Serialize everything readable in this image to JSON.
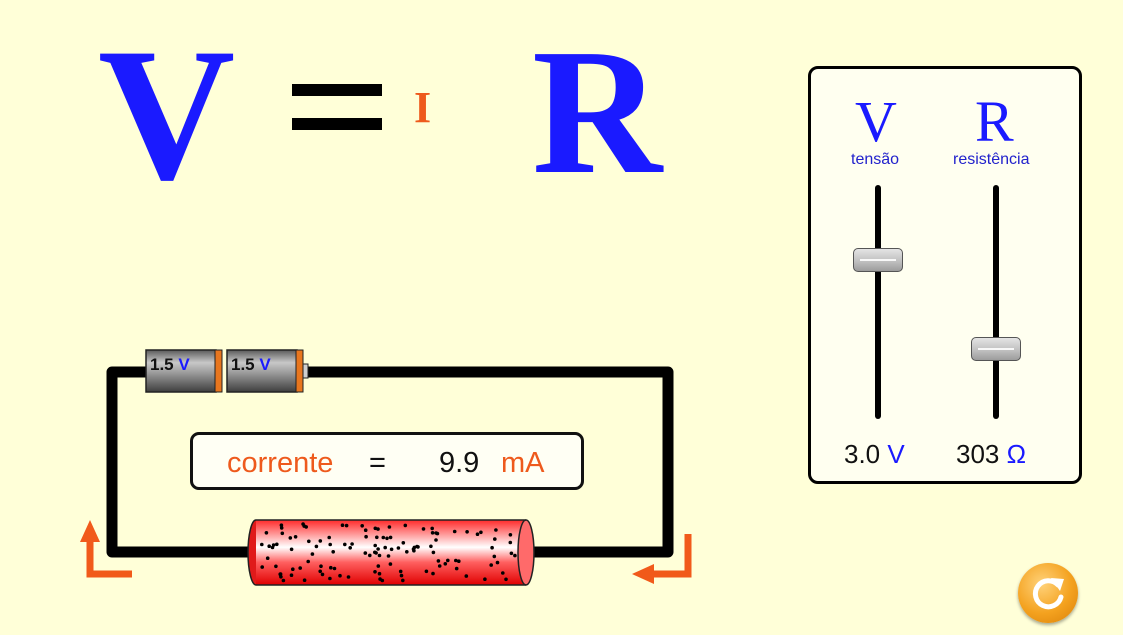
{
  "equation": {
    "v": "V",
    "equals": "=",
    "i": "I",
    "r": "R"
  },
  "panel": {
    "voltage": {
      "letter": "V",
      "caption": "tensão",
      "value": "3.0",
      "unit": "V",
      "slider_fraction": 0.68
    },
    "resistance": {
      "letter": "R",
      "caption": "resistência",
      "value": "303",
      "unit": "Ω",
      "slider_fraction": 0.3
    }
  },
  "batteries": [
    {
      "value": "1.5",
      "unit": "V"
    },
    {
      "value": "1.5",
      "unit": "V"
    }
  ],
  "current": {
    "label": "corrente",
    "equals": "=",
    "value": "9.9",
    "unit": "mA"
  },
  "colors": {
    "background": "#ffffd8",
    "accent_blue": "#1a1aff",
    "accent_orange": "#ee5a1c"
  },
  "icons": {
    "reset": "reset-icon",
    "arrow": "current-direction-arrow-icon"
  }
}
